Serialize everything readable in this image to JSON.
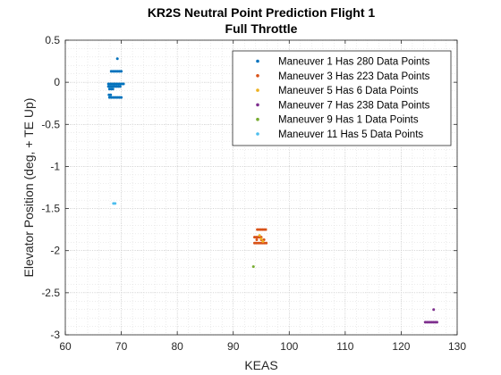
{
  "chart_data": {
    "type": "scatter",
    "title": "KR2S Neutral Point Prediction Flight 1",
    "subtitle": "Full Throttle",
    "xlabel": "KEAS",
    "ylabel": "Elevator Position (deg, + TE Up)",
    "xlim": [
      60,
      130
    ],
    "ylim": [
      -3,
      0.5
    ],
    "xticks": [
      "60",
      "70",
      "80",
      "90",
      "100",
      "110",
      "120",
      "130"
    ],
    "yticks": [
      "0.5",
      "0",
      "-0.5",
      "-1",
      "-1.5",
      "-2",
      "-2.5",
      "-3"
    ],
    "grid": "major and minor, dotted",
    "legend_position": "top-right",
    "series": [
      {
        "name": "Maneuver 1 Has 280 Data Points",
        "color": "#0072BD",
        "points": [
          [
            69.3,
            0.28
          ],
          [
            68.2,
            0.13
          ],
          [
            68.5,
            0.13
          ],
          [
            68.8,
            0.13
          ],
          [
            69.1,
            0.13
          ],
          [
            69.4,
            0.13
          ],
          [
            69.7,
            0.13
          ],
          [
            70.0,
            0.13
          ],
          [
            67.7,
            -0.02
          ],
          [
            68.0,
            -0.02
          ],
          [
            68.3,
            -0.02
          ],
          [
            68.6,
            -0.02
          ],
          [
            68.9,
            -0.02
          ],
          [
            69.2,
            -0.02
          ],
          [
            69.5,
            -0.02
          ],
          [
            69.8,
            -0.02
          ],
          [
            70.1,
            -0.02
          ],
          [
            70.4,
            -0.02
          ],
          [
            67.7,
            -0.05
          ],
          [
            68.0,
            -0.05
          ],
          [
            68.3,
            -0.05
          ],
          [
            68.6,
            -0.05
          ],
          [
            68.9,
            -0.05
          ],
          [
            69.2,
            -0.05
          ],
          [
            69.5,
            -0.05
          ],
          [
            69.8,
            -0.05
          ],
          [
            67.9,
            -0.08
          ],
          [
            68.2,
            -0.08
          ],
          [
            68.5,
            -0.08
          ],
          [
            67.8,
            -0.15
          ],
          [
            68.1,
            -0.15
          ],
          [
            67.9,
            -0.18
          ],
          [
            68.2,
            -0.18
          ],
          [
            68.5,
            -0.18
          ],
          [
            68.8,
            -0.18
          ],
          [
            69.1,
            -0.18
          ],
          [
            69.4,
            -0.18
          ],
          [
            69.7,
            -0.18
          ],
          [
            70.0,
            -0.18
          ]
        ]
      },
      {
        "name": "Maneuver 3 Has 223 Data Points",
        "color": "#D95319",
        "points": [
          [
            94.3,
            -1.75
          ],
          [
            94.6,
            -1.75
          ],
          [
            94.9,
            -1.75
          ],
          [
            95.2,
            -1.75
          ],
          [
            95.5,
            -1.75
          ],
          [
            95.8,
            -1.75
          ],
          [
            93.8,
            -1.84
          ],
          [
            94.1,
            -1.84
          ],
          [
            94.4,
            -1.84
          ],
          [
            94.7,
            -1.84
          ],
          [
            95.0,
            -1.84
          ],
          [
            94.2,
            -1.87
          ],
          [
            95.0,
            -1.87
          ],
          [
            95.5,
            -1.87
          ],
          [
            93.8,
            -1.91
          ],
          [
            94.1,
            -1.91
          ],
          [
            94.4,
            -1.91
          ],
          [
            94.7,
            -1.91
          ],
          [
            95.0,
            -1.91
          ],
          [
            95.3,
            -1.91
          ],
          [
            95.6,
            -1.91
          ],
          [
            95.9,
            -1.91
          ]
        ]
      },
      {
        "name": "Maneuver 5 Has 6 Data Points",
        "color": "#EDB120",
        "points": [
          [
            94.7,
            -1.82
          ],
          [
            95.0,
            -1.86
          ],
          [
            95.3,
            -1.89
          ]
        ]
      },
      {
        "name": "Maneuver 7 Has 238 Data Points",
        "color": "#7E2F8E",
        "points": [
          [
            125.8,
            -2.7
          ],
          [
            124.3,
            -2.85
          ],
          [
            124.6,
            -2.85
          ],
          [
            124.9,
            -2.85
          ],
          [
            125.2,
            -2.85
          ],
          [
            125.5,
            -2.85
          ],
          [
            125.8,
            -2.85
          ],
          [
            126.1,
            -2.85
          ],
          [
            126.4,
            -2.85
          ]
        ]
      },
      {
        "name": "Maneuver 9 Has 1 Data Points",
        "color": "#77AC30",
        "points": [
          [
            93.6,
            -2.19
          ]
        ]
      },
      {
        "name": "Maneuver 11 Has 5 Data Points",
        "color": "#4DBEEE",
        "points": [
          [
            68.6,
            -1.44
          ],
          [
            68.9,
            -1.44
          ]
        ]
      }
    ]
  }
}
